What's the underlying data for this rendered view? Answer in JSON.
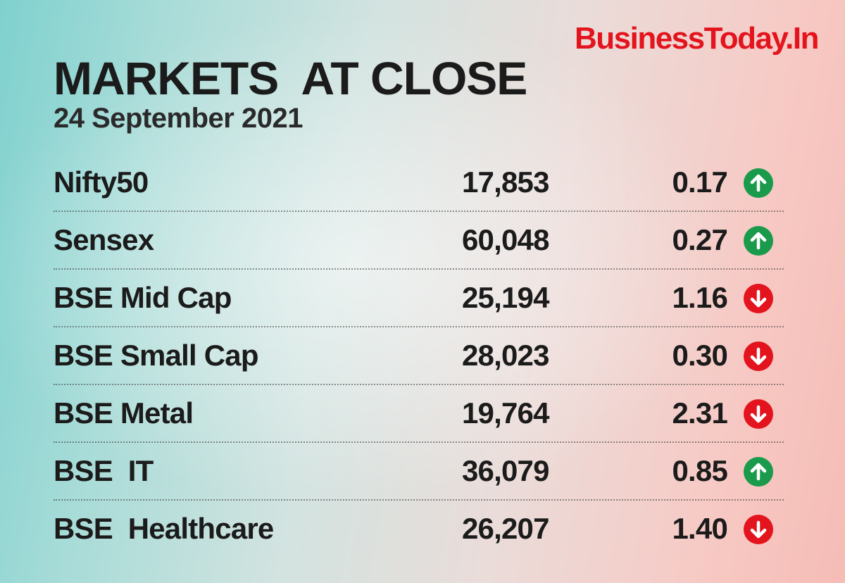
{
  "brand": "BusinessToday.In",
  "title": "MARKETS  AT CLOSE",
  "date": "24 September 2021",
  "colors": {
    "up": "#1a9a4b",
    "down": "#e3141d",
    "brand": "#e3141d"
  },
  "rows": [
    {
      "name": "Nifty50",
      "value": "17,853",
      "change": "0.17",
      "direction": "up",
      "icon": "arrow-up-icon"
    },
    {
      "name": "Sensex",
      "value": "60,048",
      "change": "0.27",
      "direction": "up",
      "icon": "arrow-up-icon"
    },
    {
      "name": "BSE Mid Cap",
      "value": "25,194",
      "change": "1.16",
      "direction": "down",
      "icon": "arrow-down-icon"
    },
    {
      "name": "BSE Small Cap",
      "value": "28,023",
      "change": "0.30",
      "direction": "down",
      "icon": "arrow-down-icon"
    },
    {
      "name": "BSE Metal",
      "value": "19,764",
      "change": "2.31",
      "direction": "down",
      "icon": "arrow-down-icon"
    },
    {
      "name": "BSE  IT",
      "value": "36,079",
      "change": "0.85",
      "direction": "up",
      "icon": "arrow-up-icon"
    },
    {
      "name": "BSE  Healthcare",
      "value": "26,207",
      "change": "1.40",
      "direction": "down",
      "icon": "arrow-down-icon"
    }
  ]
}
